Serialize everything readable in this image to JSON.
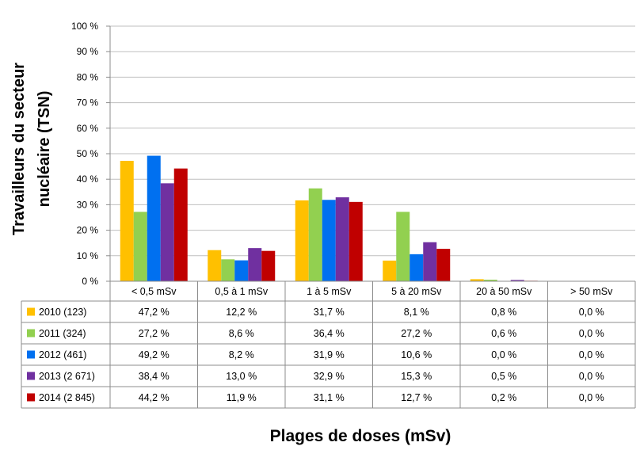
{
  "chart_data": {
    "type": "bar",
    "ylabel": [
      "Travailleurs du secteur",
      "nucléaire (TSN)"
    ],
    "xlabel": "Plages de doses (mSv)",
    "ylim": [
      0,
      100
    ],
    "y_ticks": [
      "0 %",
      "10 %",
      "20 %",
      "30 %",
      "40 %",
      "50 %",
      "60 %",
      "70 %",
      "80 %",
      "90 %",
      "100 %"
    ],
    "grid": true,
    "legend": "data-table-left",
    "categories": [
      "< 0,5 mSv",
      "0,5 à 1 mSv",
      "1 à 5 mSv",
      "5 à 20 mSv",
      "20 à 50 mSv",
      "> 50 mSv"
    ],
    "series": [
      {
        "name": "2010 (123)",
        "color": "#FFC000",
        "values": [
          47.2,
          12.2,
          31.7,
          8.1,
          0.8,
          0.0
        ],
        "labels": [
          "47,2 %",
          "12,2 %",
          "31,7 %",
          "8,1 %",
          "0,8 %",
          "0,0 %"
        ]
      },
      {
        "name": "2011 (324)",
        "color": "#92D050",
        "values": [
          27.2,
          8.6,
          36.4,
          27.2,
          0.6,
          0.0
        ],
        "labels": [
          "27,2 %",
          "8,6 %",
          "36,4 %",
          "27,2 %",
          "0,6 %",
          "0,0 %"
        ]
      },
      {
        "name": "2012 (461)",
        "color": "#0070F0",
        "values": [
          49.2,
          8.2,
          31.9,
          10.6,
          0.0,
          0.0
        ],
        "labels": [
          "49,2 %",
          "8,2 %",
          "31,9 %",
          "10,6 %",
          "0,0 %",
          "0,0 %"
        ]
      },
      {
        "name": "2013 (2 671)",
        "color": "#7030A0",
        "values": [
          38.4,
          13.0,
          32.9,
          15.3,
          0.5,
          0.0
        ],
        "labels": [
          "38,4 %",
          "13,0 %",
          "32,9 %",
          "15,3 %",
          "0,5 %",
          "0,0 %"
        ]
      },
      {
        "name": "2014 (2 845)",
        "color": "#C00000",
        "values": [
          44.2,
          11.9,
          31.1,
          12.7,
          0.2,
          0.0
        ],
        "labels": [
          "44,2 %",
          "11,9 %",
          "31,1 %",
          "12,7 %",
          "0,2 %",
          "0,0 %"
        ]
      }
    ]
  }
}
